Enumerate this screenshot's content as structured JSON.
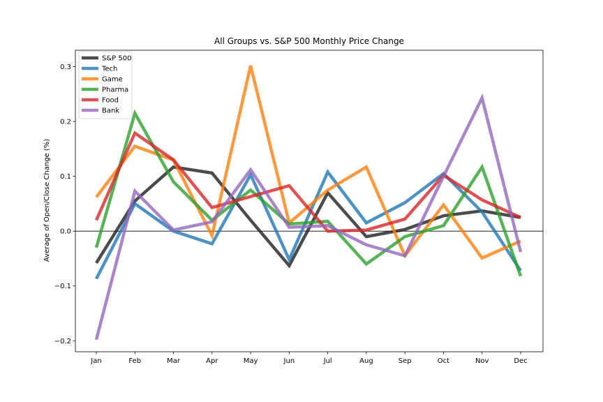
{
  "chart_data": {
    "type": "line",
    "title": "All Groups vs. S&P 500 Monthly Price Change",
    "xlabel": "",
    "ylabel": "Average of Open/Close Change (%)",
    "categories": [
      "Jan",
      "Feb",
      "Mar",
      "Apr",
      "May",
      "Jun",
      "Jul",
      "Aug",
      "Sep",
      "Oct",
      "Nov",
      "Dec"
    ],
    "ylim": [
      -0.22,
      0.33
    ],
    "yticks": [
      -0.2,
      -0.1,
      0.0,
      0.1,
      0.2,
      0.3
    ],
    "ytick_labels": [
      "−0.2",
      "−0.1",
      "0.0",
      "0.1",
      "0.2",
      "0.3"
    ],
    "zero_line": true,
    "grid": false,
    "legend_position": "top-left",
    "series": [
      {
        "name": "S&P 500",
        "color": "#1f1f1f",
        "values": [
          -0.058,
          0.055,
          0.117,
          0.106,
          0.02,
          -0.063,
          0.07,
          -0.01,
          0.003,
          0.028,
          0.037,
          0.025
        ]
      },
      {
        "name": "Tech",
        "color": "#1f77b4",
        "values": [
          -0.087,
          0.05,
          0.0,
          -0.023,
          0.103,
          -0.052,
          0.108,
          0.015,
          0.052,
          0.105,
          0.035,
          -0.072
        ]
      },
      {
        "name": "Game",
        "color": "#ff7f0e",
        "values": [
          0.062,
          0.155,
          0.13,
          -0.008,
          0.302,
          0.015,
          0.075,
          0.117,
          -0.045,
          0.048,
          -0.049,
          -0.018
        ]
      },
      {
        "name": "Pharma",
        "color": "#2ca02c",
        "values": [
          -0.03,
          0.215,
          0.09,
          0.02,
          0.075,
          0.013,
          0.018,
          -0.06,
          -0.01,
          0.01,
          0.117,
          -0.082
        ]
      },
      {
        "name": "Food",
        "color": "#d62728",
        "values": [
          0.02,
          0.179,
          0.13,
          0.043,
          0.063,
          0.083,
          0.0,
          0.002,
          0.022,
          0.102,
          0.057,
          0.025
        ]
      },
      {
        "name": "Bank",
        "color": "#9467bd",
        "values": [
          -0.198,
          0.073,
          0.002,
          0.017,
          0.112,
          0.007,
          0.01,
          -0.025,
          -0.045,
          0.1,
          0.243,
          -0.038
        ]
      }
    ]
  }
}
